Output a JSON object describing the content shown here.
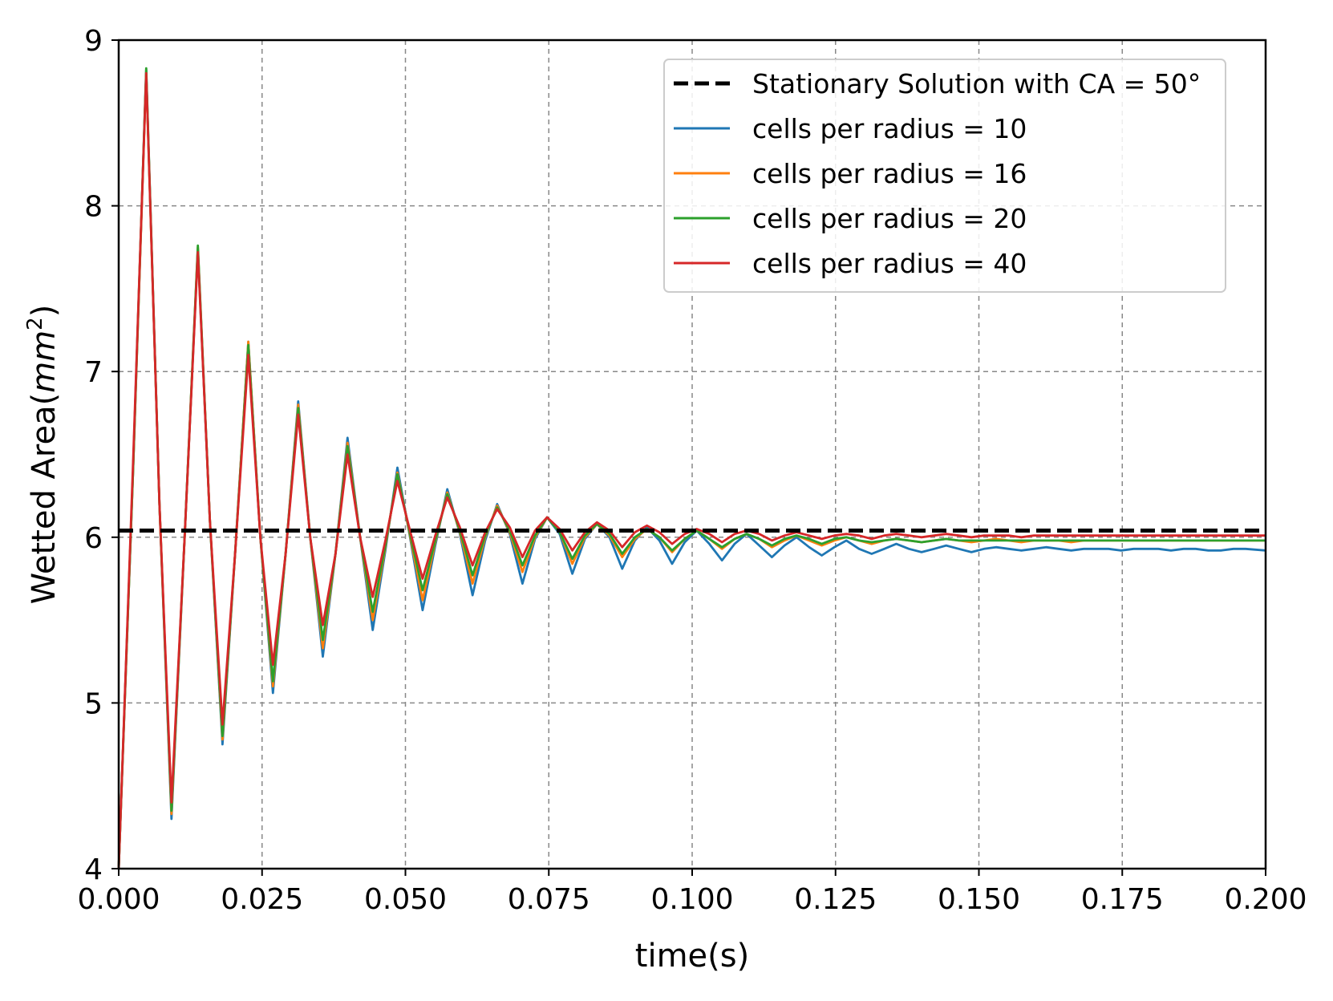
{
  "chart_data": {
    "type": "line",
    "xlabel": "time(s)",
    "ylabel_main": "Wetted Area(",
    "ylabel_unit": "mm",
    "ylabel_sup": "2",
    "ylabel_close": ")",
    "xlim": [
      0.0,
      0.2
    ],
    "ylim": [
      4,
      9
    ],
    "xticks": [
      0.0,
      0.025,
      0.05,
      0.075,
      0.1,
      0.125,
      0.15,
      0.175,
      0.2
    ],
    "xtick_labels": [
      "0.000",
      "0.025",
      "0.050",
      "0.075",
      "0.100",
      "0.125",
      "0.150",
      "0.175",
      "0.200"
    ],
    "yticks": [
      4,
      5,
      6,
      7,
      8,
      9
    ],
    "ytick_labels": [
      "4",
      "5",
      "6",
      "7",
      "8",
      "9"
    ],
    "grid": true,
    "legend_position": "top-right",
    "reference_line": {
      "name": "Stationary Solution with CA = 50°",
      "y": 6.04,
      "color": "#000000",
      "style": "dashed"
    },
    "series": [
      {
        "name": "cells per radius = 10",
        "color": "#1f77b4",
        "x": [
          0.0,
          0.0025,
          0.0048,
          0.0071,
          0.0092,
          0.0115,
          0.0138,
          0.0159,
          0.0181,
          0.0203,
          0.0226,
          0.0247,
          0.0269,
          0.0291,
          0.0313,
          0.0334,
          0.0356,
          0.0378,
          0.0399,
          0.0421,
          0.0443,
          0.0465,
          0.0486,
          0.0508,
          0.053,
          0.0552,
          0.0573,
          0.0595,
          0.0617,
          0.0639,
          0.066,
          0.0682,
          0.0704,
          0.0726,
          0.0747,
          0.0769,
          0.0791,
          0.0813,
          0.0834,
          0.0856,
          0.0878,
          0.09,
          0.0921,
          0.0943,
          0.0965,
          0.0987,
          0.1008,
          0.103,
          0.1052,
          0.1074,
          0.1095,
          0.1117,
          0.1139,
          0.1161,
          0.1182,
          0.1204,
          0.1226,
          0.1248,
          0.1269,
          0.1291,
          0.1313,
          0.1335,
          0.1356,
          0.1378,
          0.14,
          0.1422,
          0.1443,
          0.1465,
          0.1487,
          0.1509,
          0.153,
          0.1552,
          0.1574,
          0.1596,
          0.1617,
          0.1639,
          0.1661,
          0.1683,
          0.1704,
          0.1726,
          0.1748,
          0.177,
          0.1791,
          0.1813,
          0.1835,
          0.1857,
          0.1878,
          0.19,
          0.1922,
          0.1944,
          0.1965,
          0.2
        ],
        "values": [
          4.0,
          6.4,
          8.82,
          6.2,
          4.3,
          6.0,
          7.74,
          6.1,
          4.75,
          5.9,
          7.18,
          6.0,
          5.06,
          5.9,
          6.82,
          6.0,
          5.28,
          5.9,
          6.6,
          6.0,
          5.44,
          5.92,
          6.42,
          6.0,
          5.56,
          5.95,
          6.29,
          6.02,
          5.65,
          5.98,
          6.2,
          6.02,
          5.72,
          5.99,
          6.12,
          6.02,
          5.78,
          5.99,
          6.08,
          6.0,
          5.81,
          5.98,
          6.06,
          5.98,
          5.84,
          5.97,
          6.04,
          5.96,
          5.86,
          5.96,
          6.02,
          5.95,
          5.88,
          5.95,
          6.0,
          5.94,
          5.89,
          5.94,
          5.98,
          5.93,
          5.9,
          5.93,
          5.96,
          5.93,
          5.91,
          5.93,
          5.95,
          5.93,
          5.91,
          5.93,
          5.94,
          5.93,
          5.92,
          5.93,
          5.94,
          5.93,
          5.92,
          5.93,
          5.93,
          5.93,
          5.92,
          5.93,
          5.93,
          5.93,
          5.92,
          5.93,
          5.93,
          5.92,
          5.92,
          5.93,
          5.93,
          5.92
        ]
      },
      {
        "name": "cells per radius = 16",
        "color": "#ff7f0e",
        "x": [
          0.0,
          0.0025,
          0.0048,
          0.0071,
          0.0092,
          0.0115,
          0.0138,
          0.0159,
          0.0181,
          0.0203,
          0.0226,
          0.0247,
          0.0269,
          0.0291,
          0.0313,
          0.0334,
          0.0356,
          0.0378,
          0.0399,
          0.0421,
          0.0443,
          0.0465,
          0.0486,
          0.0508,
          0.053,
          0.0552,
          0.0573,
          0.0595,
          0.0617,
          0.0639,
          0.066,
          0.0682,
          0.0704,
          0.0726,
          0.0747,
          0.0769,
          0.0791,
          0.0813,
          0.0834,
          0.0856,
          0.0878,
          0.09,
          0.0921,
          0.0943,
          0.0965,
          0.0987,
          0.1008,
          0.103,
          0.1052,
          0.1074,
          0.1095,
          0.1117,
          0.1139,
          0.1161,
          0.1182,
          0.1204,
          0.1226,
          0.1248,
          0.1269,
          0.1291,
          0.1313,
          0.1335,
          0.1356,
          0.1378,
          0.14,
          0.1422,
          0.1443,
          0.1465,
          0.1487,
          0.1509,
          0.153,
          0.1552,
          0.1574,
          0.1596,
          0.1617,
          0.1639,
          0.1661,
          0.1683,
          0.1704,
          0.1726,
          0.1748,
          0.177,
          0.1791,
          0.1813,
          0.1835,
          0.1857,
          0.1878,
          0.19,
          0.1922,
          0.1944,
          0.1965,
          0.2
        ],
        "values": [
          4.0,
          6.4,
          8.8,
          6.2,
          4.33,
          6.0,
          7.75,
          6.1,
          4.78,
          5.9,
          7.18,
          6.0,
          5.1,
          5.9,
          6.8,
          6.0,
          5.33,
          5.9,
          6.57,
          6.0,
          5.5,
          5.94,
          6.39,
          6.01,
          5.62,
          5.97,
          6.27,
          6.03,
          5.72,
          6.0,
          6.19,
          6.03,
          5.79,
          6.0,
          6.12,
          6.03,
          5.84,
          6.0,
          6.08,
          6.01,
          5.88,
          5.99,
          6.05,
          6.0,
          5.91,
          5.99,
          6.04,
          5.99,
          5.93,
          5.99,
          6.02,
          5.99,
          5.94,
          5.98,
          6.01,
          5.98,
          5.95,
          5.98,
          6.0,
          5.98,
          5.96,
          5.98,
          5.99,
          5.98,
          5.97,
          5.98,
          5.99,
          5.98,
          5.97,
          5.98,
          5.99,
          5.98,
          5.97,
          5.98,
          5.98,
          5.98,
          5.97,
          5.98,
          5.98,
          5.98,
          5.98,
          5.98,
          5.98,
          5.98,
          5.98,
          5.98,
          5.98,
          5.98,
          5.98,
          5.98,
          5.98,
          5.98
        ]
      },
      {
        "name": "cells per radius = 20",
        "color": "#2ca02c",
        "x": [
          0.0,
          0.0025,
          0.0048,
          0.0071,
          0.0092,
          0.0115,
          0.0138,
          0.0159,
          0.0181,
          0.0203,
          0.0226,
          0.0247,
          0.0269,
          0.0291,
          0.0313,
          0.0334,
          0.0356,
          0.0378,
          0.0399,
          0.0421,
          0.0443,
          0.0465,
          0.0486,
          0.0508,
          0.053,
          0.0552,
          0.0573,
          0.0595,
          0.0617,
          0.0639,
          0.066,
          0.0682,
          0.0704,
          0.0726,
          0.0747,
          0.0769,
          0.0791,
          0.0813,
          0.0834,
          0.0856,
          0.0878,
          0.09,
          0.0921,
          0.0943,
          0.0965,
          0.0987,
          0.1008,
          0.103,
          0.1052,
          0.1074,
          0.1095,
          0.1117,
          0.1139,
          0.1161,
          0.1182,
          0.1204,
          0.1226,
          0.1248,
          0.1269,
          0.1291,
          0.1313,
          0.1335,
          0.1356,
          0.1378,
          0.14,
          0.1422,
          0.1443,
          0.1465,
          0.1487,
          0.1509,
          0.153,
          0.1552,
          0.1574,
          0.1596,
          0.1617,
          0.1639,
          0.1661,
          0.1683,
          0.1704,
          0.1726,
          0.1748,
          0.177,
          0.1791,
          0.1813,
          0.1835,
          0.1857,
          0.1878,
          0.19,
          0.1922,
          0.1944,
          0.1965,
          0.2
        ],
        "values": [
          4.0,
          6.4,
          8.83,
          6.2,
          4.35,
          6.0,
          7.76,
          6.1,
          4.8,
          5.9,
          7.16,
          6.0,
          5.13,
          5.9,
          6.78,
          6.0,
          5.38,
          5.9,
          6.55,
          6.0,
          5.55,
          5.95,
          6.38,
          6.02,
          5.68,
          5.98,
          6.26,
          6.04,
          5.77,
          6.01,
          6.18,
          6.04,
          5.83,
          6.01,
          6.12,
          6.03,
          5.87,
          6.01,
          6.08,
          6.02,
          5.9,
          6.0,
          6.05,
          6.0,
          5.92,
          5.99,
          6.04,
          5.99,
          5.94,
          5.99,
          6.02,
          5.99,
          5.95,
          5.99,
          6.01,
          5.99,
          5.96,
          5.99,
          6.0,
          5.98,
          5.97,
          5.98,
          5.99,
          5.98,
          5.97,
          5.98,
          5.99,
          5.98,
          5.98,
          5.98,
          5.98,
          5.98,
          5.98,
          5.98,
          5.98,
          5.98,
          5.98,
          5.98,
          5.98,
          5.98,
          5.98,
          5.98,
          5.98,
          5.98,
          5.98,
          5.98,
          5.98,
          5.98,
          5.98,
          5.98,
          5.98,
          5.98
        ]
      },
      {
        "name": "cells per radius = 40",
        "color": "#d62728",
        "x": [
          0.0,
          0.0025,
          0.0048,
          0.0071,
          0.0092,
          0.0115,
          0.0138,
          0.0159,
          0.0181,
          0.0203,
          0.0226,
          0.0247,
          0.0269,
          0.0291,
          0.0313,
          0.0334,
          0.0356,
          0.0378,
          0.0399,
          0.0421,
          0.0443,
          0.0465,
          0.0486,
          0.0508,
          0.053,
          0.0552,
          0.0573,
          0.0595,
          0.0617,
          0.0639,
          0.066,
          0.0682,
          0.0704,
          0.0726,
          0.0747,
          0.0769,
          0.0791,
          0.0813,
          0.0834,
          0.0856,
          0.0878,
          0.09,
          0.0921,
          0.0943,
          0.0965,
          0.0987,
          0.1008,
          0.103,
          0.1052,
          0.1074,
          0.1095,
          0.1117,
          0.1139,
          0.1161,
          0.1182,
          0.1204,
          0.1226,
          0.1248,
          0.1269,
          0.1291,
          0.1313,
          0.1335,
          0.1356,
          0.1378,
          0.14,
          0.1422,
          0.1443,
          0.1465,
          0.1487,
          0.1509,
          0.153,
          0.1552,
          0.1574,
          0.1596,
          0.1617,
          0.1639,
          0.1661,
          0.1683,
          0.1704,
          0.1726,
          0.1748,
          0.177,
          0.1791,
          0.1813,
          0.1835,
          0.1857,
          0.1878,
          0.19,
          0.1922,
          0.1944,
          0.1965,
          0.2
        ],
        "values": [
          4.0,
          6.45,
          8.8,
          6.2,
          4.4,
          6.0,
          7.72,
          6.1,
          4.87,
          5.9,
          7.1,
          6.0,
          5.23,
          5.9,
          6.74,
          6.0,
          5.47,
          5.9,
          6.5,
          6.0,
          5.64,
          5.98,
          6.34,
          6.04,
          5.75,
          6.01,
          6.24,
          6.06,
          5.83,
          6.03,
          6.17,
          6.06,
          5.88,
          6.04,
          6.12,
          6.05,
          5.92,
          6.03,
          6.09,
          6.04,
          5.94,
          6.03,
          6.07,
          6.03,
          5.96,
          6.02,
          6.05,
          6.02,
          5.97,
          6.02,
          6.04,
          6.02,
          5.98,
          6.01,
          6.03,
          6.01,
          5.99,
          6.01,
          6.02,
          6.01,
          5.99,
          6.01,
          6.02,
          6.01,
          6.0,
          6.01,
          6.02,
          6.01,
          6.0,
          6.01,
          6.01,
          6.01,
          6.0,
          6.01,
          6.01,
          6.01,
          6.01,
          6.01,
          6.01,
          6.01,
          6.01,
          6.01,
          6.01,
          6.01,
          6.01,
          6.01,
          6.01,
          6.01,
          6.01,
          6.01,
          6.01,
          6.01
        ]
      }
    ]
  }
}
